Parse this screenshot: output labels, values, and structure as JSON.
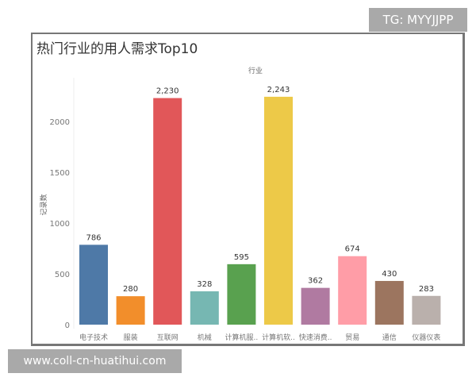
{
  "watermarks": {
    "top": "TG: MYYJJPP",
    "bottom": "www.coll-cn-huatihui.com"
  },
  "chart_data": {
    "type": "bar",
    "title": "热门行业的用人需求Top10",
    "column_header": "行业",
    "ylabel": "记录数",
    "xlabel": "",
    "categories": [
      "电子技术",
      "服装",
      "互联网",
      "机械",
      "计算机服..",
      "计算机软..",
      "快速消费..",
      "贸易",
      "通信",
      "仪器仪表"
    ],
    "values": [
      786,
      280,
      2230,
      328,
      595,
      2243,
      362,
      674,
      430,
      283
    ],
    "data_labels": [
      "786",
      "280",
      "2,230",
      "328",
      "595",
      "2,243",
      "362",
      "674",
      "430",
      "283"
    ],
    "colors": [
      "#4e79a7",
      "#f28e2b",
      "#e15759",
      "#76b7b2",
      "#59a14f",
      "#edc948",
      "#b07aa1",
      "#ff9da7",
      "#9c755f",
      "#bab0ac"
    ],
    "yticks": [
      0,
      500,
      1000,
      1500,
      2000
    ],
    "ylim": [
      0,
      2400
    ],
    "grid": false,
    "legend": "none"
  }
}
